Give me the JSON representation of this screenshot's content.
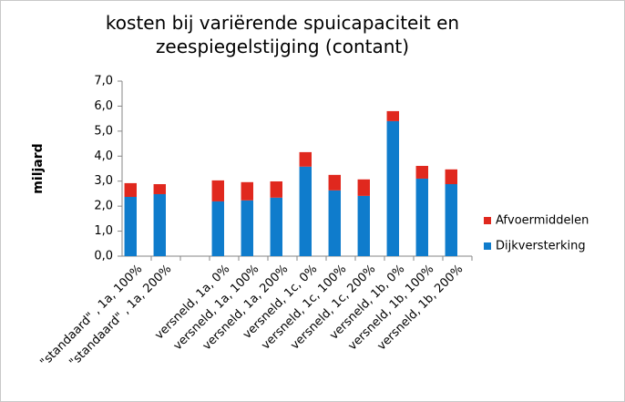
{
  "chart_data": {
    "type": "stacked-bar",
    "title": "kosten bij variërende spuicapaciteit en zeespiegelstijging (contant)",
    "y_label": "miljard",
    "categories": [
      "\"standaard\" , 1a, 100%",
      "\"standaard\" , 1a, 200%",
      null,
      "versneld, 1a, 0%",
      "versneld, 1a, 100%",
      "versneld, 1a, 200%",
      "versneld, 1c, 0%",
      "versneld, 1c, 100%",
      "versneld, 1c, 200%",
      "versneld, 1b, 0%",
      "versneld, 1b, 100%",
      "versneld, 1b, 200%"
    ],
    "series": [
      {
        "name": "Dijkversterking",
        "color": "#0f7ccc",
        "values": [
          2.37,
          2.48,
          null,
          2.19,
          2.23,
          2.34,
          3.58,
          2.63,
          2.41,
          5.4,
          3.1,
          2.88
        ]
      },
      {
        "name": "Afvoermiddelen",
        "color": "#e0281e",
        "values": [
          0.55,
          0.4,
          null,
          0.84,
          0.73,
          0.65,
          0.58,
          0.62,
          0.66,
          0.4,
          0.51,
          0.59
        ]
      }
    ],
    "ylim": [
      0,
      7
    ],
    "yticks": [
      {
        "value": 0,
        "label": "0,0"
      },
      {
        "value": 1,
        "label": "1,0"
      },
      {
        "value": 2,
        "label": "2,0"
      },
      {
        "value": 3,
        "label": "3,0"
      },
      {
        "value": 4,
        "label": "4,0"
      },
      {
        "value": 5,
        "label": "5,0"
      },
      {
        "value": 6,
        "label": "6,0"
      },
      {
        "value": 7,
        "label": "7,0"
      }
    ],
    "grid": false,
    "legend": "right"
  }
}
